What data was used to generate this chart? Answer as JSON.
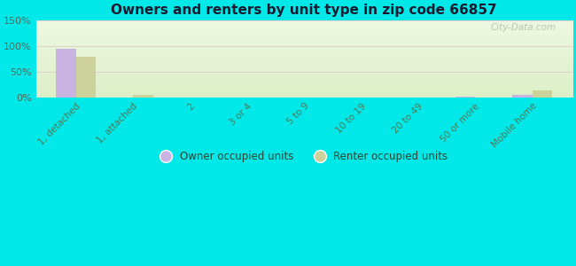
{
  "title": "Owners and renters by unit type in zip code 66857",
  "categories": [
    "1, detached",
    "1, attached",
    "2",
    "3 or 4",
    "5 to 9",
    "10 to 19",
    "20 to 49",
    "50 or more",
    "Mobile home"
  ],
  "owner_values": [
    95,
    0,
    0,
    0,
    0,
    0,
    0,
    1,
    4
  ],
  "renter_values": [
    79,
    5,
    0,
    0,
    0,
    0,
    0,
    0,
    13
  ],
  "owner_color": "#c9b3e0",
  "renter_color": "#cdd19a",
  "background_top": "#e0f0d0",
  "background_bottom": "#f0f8e8",
  "outer_background": "#00e8e8",
  "ylim": [
    0,
    150
  ],
  "yticks": [
    0,
    50,
    100,
    150
  ],
  "ytick_labels": [
    "0%",
    "50%",
    "100%",
    "150%"
  ],
  "bar_width": 0.35,
  "legend_owner": "Owner occupied units",
  "legend_renter": "Renter occupied units",
  "watermark": "City-Data.com"
}
